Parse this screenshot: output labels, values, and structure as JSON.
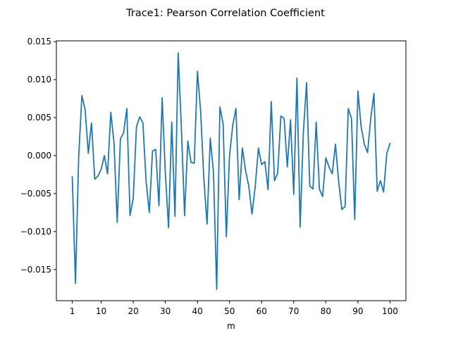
{
  "chart_data": {
    "type": "line",
    "title": "Trace1: Pearson Correlation Coefficient",
    "xlabel": "m",
    "ylabel": "",
    "xlim": [
      -3.95,
      104.95
    ],
    "ylim": [
      -0.0191,
      0.0151
    ],
    "xticks": [
      1,
      10,
      20,
      30,
      40,
      50,
      60,
      70,
      80,
      90,
      100
    ],
    "yticks": [
      -0.015,
      -0.01,
      -0.005,
      0.0,
      0.005,
      0.01,
      0.015
    ],
    "ytick_labels": [
      "−0.015",
      "−0.010",
      "−0.005",
      "0.000",
      "0.005",
      "0.010",
      "0.015"
    ],
    "grid": false,
    "color": "#1f77b4",
    "series": [
      {
        "x": [
          1,
          2,
          3,
          4,
          5,
          6,
          7,
          8,
          9,
          10,
          11,
          12,
          13,
          14,
          15,
          16,
          17,
          18,
          19,
          20,
          21,
          22,
          23,
          24,
          25,
          26,
          27,
          28,
          29,
          30,
          31,
          32,
          33,
          34,
          35,
          36,
          37,
          38,
          39,
          40,
          41,
          42,
          43,
          44,
          45,
          46,
          47,
          48,
          49,
          50,
          51,
          52,
          53,
          54,
          55,
          56,
          57,
          58,
          59,
          60,
          61,
          62,
          63,
          64,
          65,
          66,
          67,
          68,
          69,
          70,
          71,
          72,
          73,
          74,
          75,
          76,
          77,
          78,
          79,
          80,
          81,
          82,
          83,
          84,
          85,
          86,
          87,
          88,
          89,
          90,
          91,
          92,
          93,
          94,
          95,
          96,
          97,
          98,
          99,
          100
        ],
        "values": [
          -0.0028,
          -0.0168,
          -0.0002,
          0.0079,
          0.0061,
          0.0003,
          0.0043,
          -0.0031,
          -0.0027,
          -0.0018,
          0.0,
          -0.0024,
          0.0057,
          0.0017,
          -0.0088,
          0.0022,
          0.003,
          0.0062,
          -0.0079,
          -0.0056,
          0.0038,
          0.0051,
          0.0043,
          -0.0033,
          -0.0075,
          0.0006,
          0.0008,
          -0.0066,
          0.0076,
          -0.0023,
          -0.0095,
          0.0044,
          -0.008,
          0.0135,
          0.0036,
          -0.0079,
          0.0019,
          -0.0009,
          -0.001,
          0.0111,
          0.0058,
          -0.0031,
          -0.009,
          0.0023,
          -0.0022,
          -0.0176,
          0.0064,
          0.0042,
          -0.0107,
          0.0,
          0.004,
          0.0062,
          -0.0058,
          0.001,
          -0.002,
          -0.004,
          -0.0077,
          -0.0041,
          0.001,
          -0.0012,
          -0.0008,
          -0.0045,
          0.0071,
          -0.0033,
          -0.0023,
          0.0052,
          0.0049,
          -0.0015,
          0.0047,
          -0.0051,
          0.0102,
          -0.0094,
          0.003,
          0.0096,
          -0.004,
          -0.0044,
          0.0044,
          -0.0044,
          -0.0054,
          -0.0003,
          -0.0015,
          -0.0024,
          0.0015,
          -0.0034,
          -0.0071,
          -0.0067,
          0.0062,
          0.0049,
          -0.0084,
          0.0085,
          0.0038,
          0.0015,
          0.0004,
          0.0049,
          0.0082,
          -0.0047,
          -0.0033,
          -0.0048,
          0.0003,
          0.0016
        ]
      }
    ]
  }
}
